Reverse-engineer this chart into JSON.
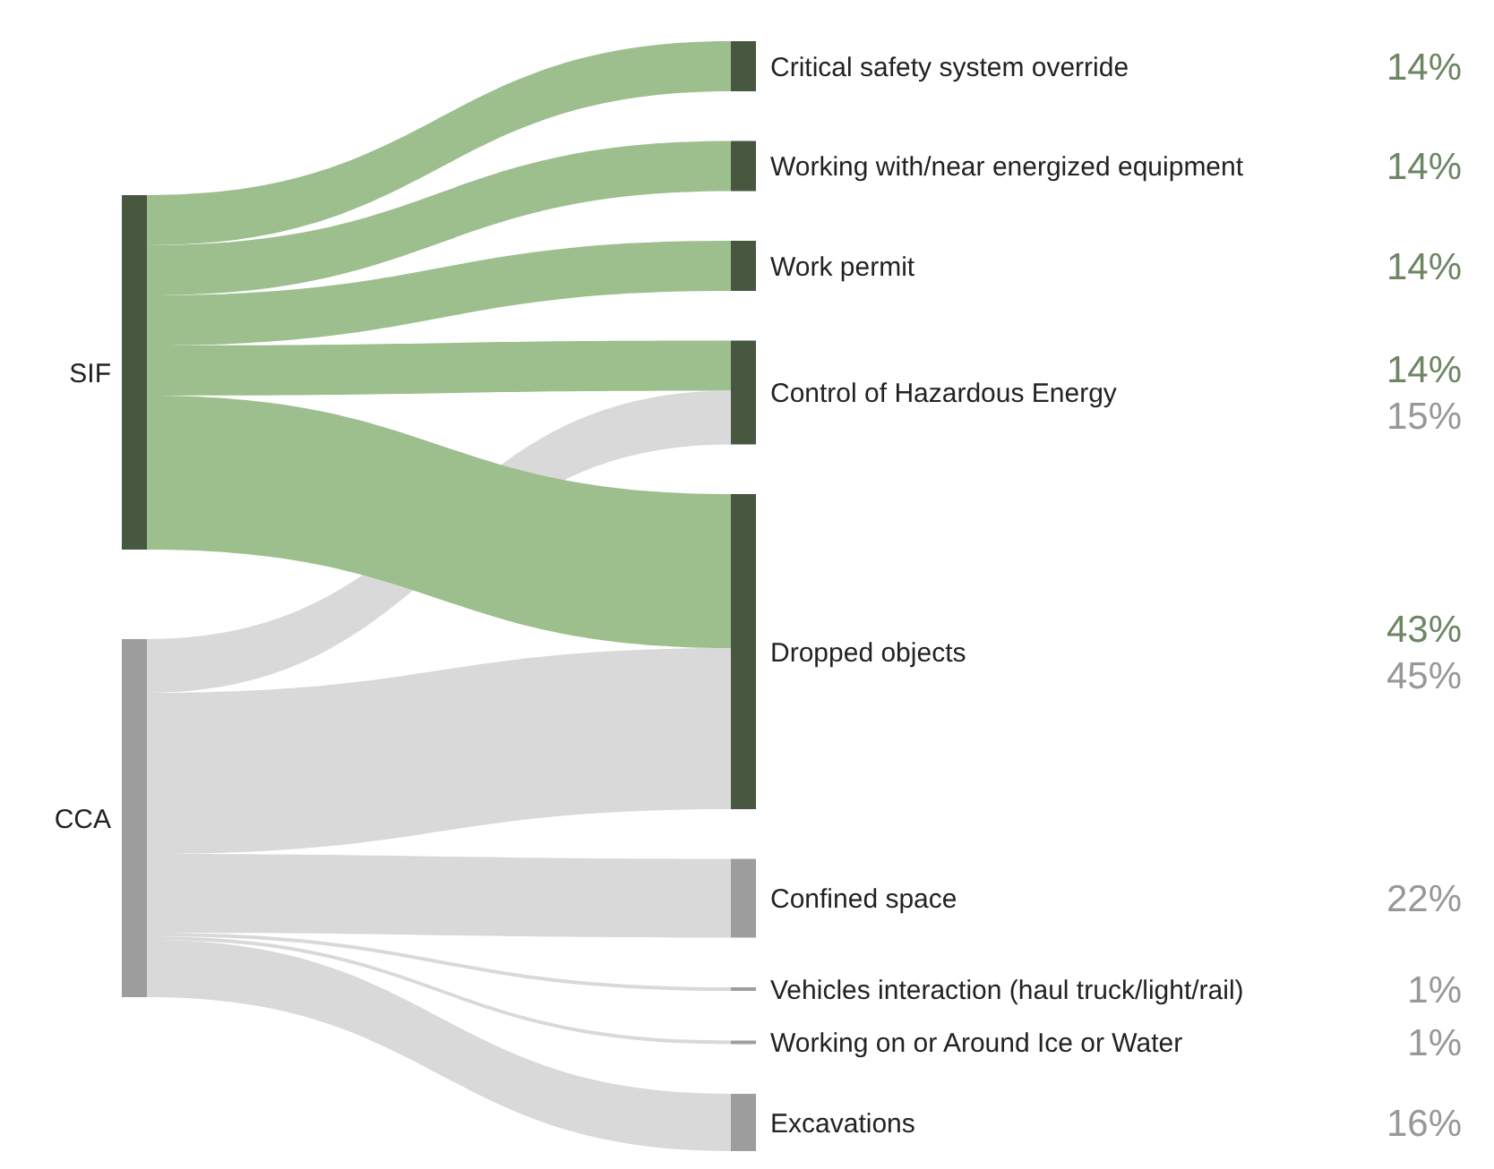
{
  "chart_data": {
    "type": "other",
    "categories": [
      "Critical safety system override",
      "Working with/near energized equipment",
      "Work permit",
      "Control of Hazardous Energy",
      "Dropped objects",
      "Confined space",
      "Vehicles interaction (haul truck/light/rail)",
      "Working on or Around Ice or Water",
      "Excavations"
    ],
    "series": [
      {
        "name": "SIF",
        "values": [
          14,
          14,
          14,
          14,
          43,
          null,
          null,
          null,
          null
        ],
        "value_labels": [
          "14%",
          "14%",
          "14%",
          "14%",
          "43%",
          null,
          null,
          null,
          null
        ]
      },
      {
        "name": "CCA",
        "values": [
          null,
          null,
          null,
          15,
          45,
          22,
          1,
          1,
          16
        ],
        "value_labels": [
          null,
          null,
          null,
          "15%",
          "45%",
          "22%",
          "1%",
          "1%",
          "16%"
        ]
      }
    ]
  }
}
